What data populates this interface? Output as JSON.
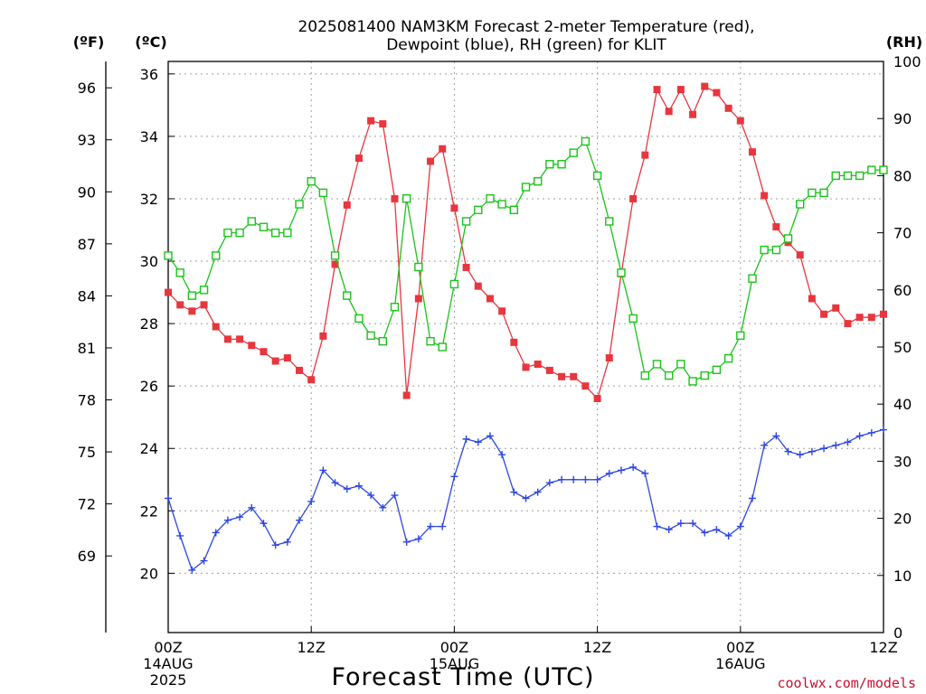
{
  "chart_data": {
    "type": "line",
    "title_line1": "2025081400 NAM3KM Forecast 2-meter Temperature (red),",
    "title_line2": "Dewpoint (blue), RH (green) for KLIT",
    "xlabel": "Forecast Time (UTC)",
    "credit": "coolwx.com/models",
    "units": {
      "fahrenheit": "(ºF)",
      "celsius": "(ºC)",
      "rh": "(RH)"
    },
    "x": {
      "unit": "hours since 00Z 14AUG 2025",
      "range": [
        0,
        60
      ]
    },
    "x_ticks": [
      {
        "hour": 0,
        "lines": [
          "00Z",
          "14AUG",
          "2025"
        ]
      },
      {
        "hour": 12,
        "lines": [
          "12Z"
        ]
      },
      {
        "hour": 24,
        "lines": [
          "00Z",
          "15AUG"
        ]
      },
      {
        "hour": 36,
        "lines": [
          "12Z"
        ]
      },
      {
        "hour": 48,
        "lines": [
          "00Z",
          "16AUG"
        ]
      },
      {
        "hour": 60,
        "lines": [
          "12Z"
        ]
      }
    ],
    "y_celsius": {
      "range": [
        18.1,
        36.4
      ],
      "ticks": [
        20,
        22,
        24,
        26,
        28,
        30,
        32,
        34,
        36
      ]
    },
    "y_fahrenheit_ticks": [
      69,
      72,
      75,
      78,
      81,
      84,
      87,
      90,
      93,
      96
    ],
    "y_rh": {
      "range": [
        0,
        100
      ],
      "ticks": [
        0,
        10,
        20,
        30,
        40,
        50,
        60,
        70,
        80,
        90,
        100
      ]
    },
    "series": [
      {
        "name": "Temperature",
        "color": "#e8363e",
        "marker": "filled-square",
        "axis": "celsius",
        "x": [
          0,
          1,
          2,
          3,
          4,
          5,
          6,
          7,
          8,
          9,
          10,
          11,
          12,
          13,
          14,
          15,
          16,
          17,
          18,
          19,
          20,
          21,
          22,
          23,
          24,
          25,
          26,
          27,
          28,
          29,
          30,
          31,
          32,
          33,
          34,
          35,
          36,
          37,
          38,
          39,
          40,
          41,
          42,
          43,
          44,
          45,
          46,
          47,
          48,
          49,
          50,
          51,
          52,
          53,
          54,
          55,
          56,
          57,
          58,
          59,
          60
        ],
        "values": [
          29.0,
          28.6,
          28.4,
          28.6,
          27.9,
          27.5,
          27.5,
          27.3,
          27.1,
          26.8,
          26.9,
          26.5,
          26.2,
          27.6,
          29.9,
          31.8,
          33.3,
          34.5,
          34.4,
          32.0,
          25.7,
          28.8,
          33.2,
          33.6,
          31.7,
          29.8,
          29.2,
          28.8,
          28.4,
          27.4,
          26.6,
          26.7,
          26.5,
          26.3,
          26.3,
          26.0,
          25.6,
          26.9,
          29.6,
          32.0,
          33.4,
          35.5,
          34.8,
          35.5,
          34.7,
          35.6,
          35.4,
          34.9,
          34.5,
          33.5,
          32.1,
          31.1,
          30.6,
          30.2,
          28.8,
          28.3,
          28.5,
          28.0,
          28.2,
          28.2,
          28.3
        ]
      },
      {
        "name": "Dewpoint",
        "color": "#2d46e0",
        "marker": "plus",
        "axis": "celsius",
        "x": [
          0,
          1,
          2,
          3,
          4,
          5,
          6,
          7,
          8,
          9,
          10,
          11,
          12,
          13,
          14,
          15,
          16,
          17,
          18,
          19,
          20,
          21,
          22,
          23,
          24,
          25,
          26,
          27,
          28,
          29,
          30,
          31,
          32,
          33,
          34,
          35,
          36,
          37,
          38,
          39,
          40,
          41,
          42,
          43,
          44,
          45,
          46,
          47,
          48,
          49,
          50,
          51,
          52,
          53,
          54,
          55,
          56,
          57,
          58,
          59,
          60
        ],
        "values": [
          22.4,
          21.2,
          20.1,
          20.4,
          21.3,
          21.7,
          21.8,
          22.1,
          21.6,
          20.9,
          21.0,
          21.7,
          22.3,
          23.3,
          22.9,
          22.7,
          22.8,
          22.5,
          22.1,
          22.5,
          21.0,
          21.1,
          21.5,
          21.5,
          23.1,
          24.3,
          24.2,
          24.4,
          23.8,
          22.6,
          22.4,
          22.6,
          22.9,
          23.0,
          23.0,
          23.0,
          23.0,
          23.2,
          23.3,
          23.4,
          23.2,
          21.5,
          21.4,
          21.6,
          21.6,
          21.3,
          21.4,
          21.2,
          21.5,
          22.4,
          24.1,
          24.4,
          23.9,
          23.8,
          23.9,
          24.0,
          24.1,
          24.2,
          24.4,
          24.5,
          24.6
        ]
      },
      {
        "name": "RH",
        "color": "#19c419",
        "marker": "open-square",
        "axis": "rh",
        "x": [
          0,
          1,
          2,
          3,
          4,
          5,
          6,
          7,
          8,
          9,
          10,
          11,
          12,
          13,
          14,
          15,
          16,
          17,
          18,
          19,
          20,
          21,
          22,
          23,
          24,
          25,
          26,
          27,
          28,
          29,
          30,
          31,
          32,
          33,
          34,
          35,
          36,
          37,
          38,
          39,
          40,
          41,
          42,
          43,
          44,
          45,
          46,
          47,
          48,
          49,
          50,
          51,
          52,
          53,
          54,
          55,
          56,
          57,
          58,
          59,
          60
        ],
        "values": [
          66,
          63,
          59,
          60,
          66,
          70,
          70,
          72,
          71,
          70,
          70,
          75,
          79,
          77,
          66,
          59,
          55,
          52,
          51,
          57,
          76,
          64,
          51,
          50,
          61,
          72,
          74,
          76,
          75,
          74,
          78,
          79,
          82,
          82,
          84,
          86,
          80,
          72,
          63,
          55,
          45,
          47,
          45,
          47,
          44,
          45,
          46,
          48,
          52,
          62,
          67,
          67,
          69,
          75,
          77,
          77,
          80,
          80,
          80,
          81,
          81
        ]
      }
    ]
  }
}
